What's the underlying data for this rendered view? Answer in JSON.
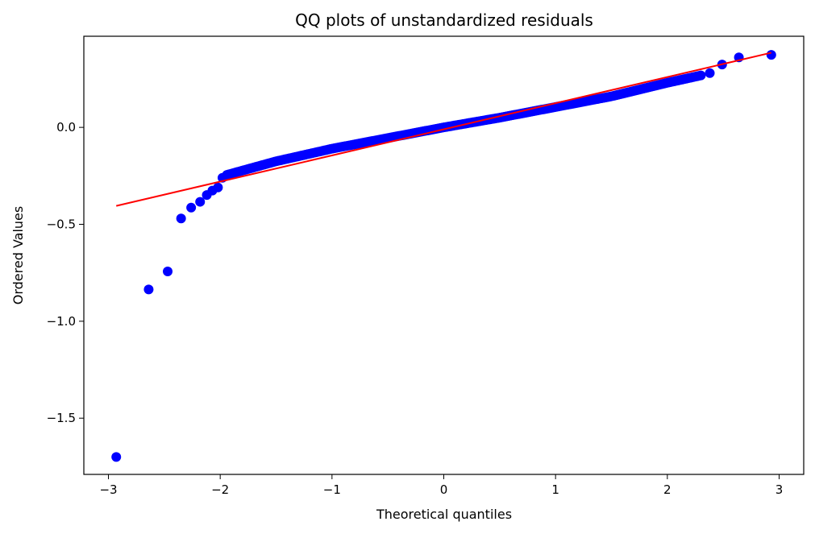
{
  "chart_data": {
    "type": "scatter",
    "title": "QQ plots of unstandardized residuals",
    "xlabel": "Theoretical quantiles",
    "ylabel": "Ordered Values",
    "xlim": [
      -3.22,
      3.22
    ],
    "ylim": [
      -1.79,
      0.47
    ],
    "xticks": [
      -3,
      -2,
      -1,
      0,
      1,
      2,
      3
    ],
    "xtick_labels": [
      "−3",
      "−2",
      "−1",
      "0",
      "1",
      "2",
      "3"
    ],
    "yticks": [
      -1.5,
      -1.0,
      -0.5,
      0.0
    ],
    "ytick_labels": [
      "−1.5",
      "−1.0",
      "−0.5",
      "0.0"
    ],
    "grid": false,
    "colors": {
      "points": "#0000ff",
      "fit_line": "#ff0000",
      "axes": "#000000"
    },
    "series": [
      {
        "kind": "points",
        "x": [
          -2.93,
          -2.64,
          -2.47,
          -2.35,
          -2.26,
          -2.18,
          -2.12,
          -2.07,
          -2.02,
          -1.98
        ],
        "y": [
          -1.7,
          -0.836,
          -0.743,
          -0.47,
          -0.414,
          -0.384,
          -0.349,
          -0.326,
          -0.31,
          -0.26
        ],
        "bulk": {
          "x_start": -1.94,
          "x_end": 2.3,
          "count": 230,
          "y_at_start": -0.245,
          "y_at_end": 0.268,
          "segments": [
            {
              "x": -1.94,
              "y": -0.245
            },
            {
              "x": -1.5,
              "y": -0.175
            },
            {
              "x": -1.0,
              "y": -0.11
            },
            {
              "x": -0.5,
              "y": -0.055
            },
            {
              "x": 0.0,
              "y": 0.0
            },
            {
              "x": 0.5,
              "y": 0.05
            },
            {
              "x": 1.0,
              "y": 0.105
            },
            {
              "x": 1.5,
              "y": 0.16
            },
            {
              "x": 2.0,
              "y": 0.23
            },
            {
              "x": 2.3,
              "y": 0.268
            }
          ]
        },
        "upper_tail": {
          "x": [
            2.38,
            2.49,
            2.64,
            2.93
          ],
          "y": [
            0.28,
            0.324,
            0.361,
            0.374
          ]
        }
      },
      {
        "kind": "line",
        "x": [
          -2.93,
          2.93
        ],
        "y": [
          -0.405,
          0.385
        ]
      }
    ]
  }
}
